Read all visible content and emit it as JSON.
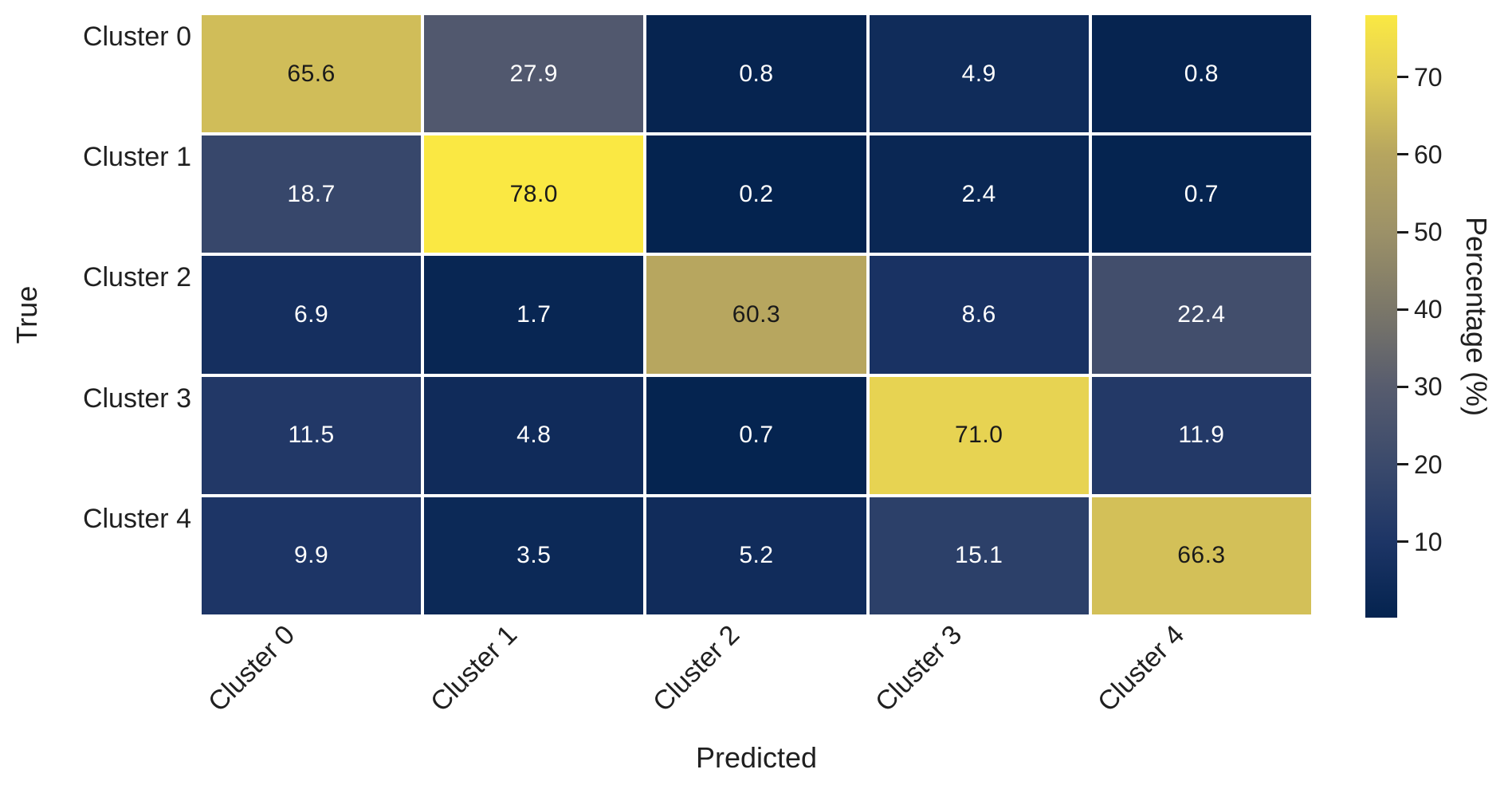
{
  "figure": {
    "background": "#ffffff",
    "text_color": "#202020"
  },
  "chart_data": {
    "type": "heatmap",
    "title": "",
    "xlabel": "Predicted",
    "ylabel": "True",
    "x_categories": [
      "Cluster 0",
      "Cluster 1",
      "Cluster 2",
      "Cluster 3",
      "Cluster 4"
    ],
    "y_categories": [
      "Cluster 0",
      "Cluster 1",
      "Cluster 2",
      "Cluster 3",
      "Cluster 4"
    ],
    "values": [
      [
        65.6,
        27.9,
        0.8,
        4.9,
        0.8
      ],
      [
        18.7,
        78.0,
        0.2,
        2.4,
        0.7
      ],
      [
        6.9,
        1.7,
        60.3,
        8.6,
        22.4
      ],
      [
        11.5,
        4.8,
        0.7,
        71.0,
        11.9
      ],
      [
        9.9,
        3.5,
        5.2,
        15.1,
        66.3
      ]
    ],
    "annotation_decimals": 1,
    "annotation_colors": {
      "on_dark_cell": "#ffffff",
      "on_light_cell": "#1a1a1a"
    },
    "grid_line_color": "#ffffff",
    "legend_position": "right-colorbar",
    "colorbar": {
      "label": "Percentage (%)",
      "orientation": "vertical",
      "vmin": 0.2,
      "vmax": 78.0,
      "ticks": [
        10,
        20,
        30,
        40,
        50,
        60,
        70
      ],
      "colormap": "cividis",
      "stops": [
        [
          0.2,
          "#04234F"
        ],
        [
          10,
          "#1D3566"
        ],
        [
          20,
          "#3B4A6C"
        ],
        [
          30,
          "#575C6E"
        ],
        [
          40,
          "#7B7769"
        ],
        [
          50,
          "#9C9168"
        ],
        [
          60,
          "#B6A55F"
        ],
        [
          70,
          "#E4D054"
        ],
        [
          78,
          "#FAE843"
        ]
      ]
    }
  }
}
